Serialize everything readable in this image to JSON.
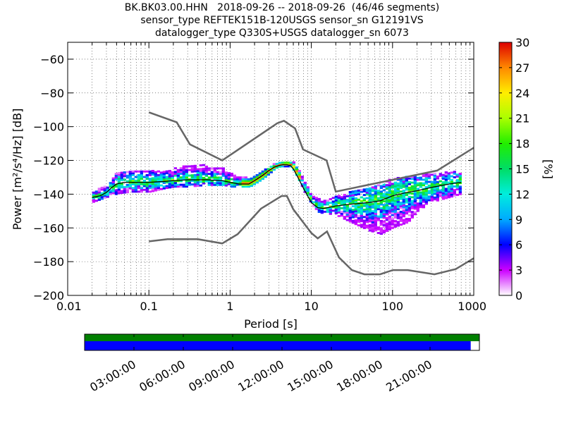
{
  "title": {
    "line1": "BK.BK03.00.HHN   2018-09-26 -- 2018-09-26  (46/46 segments)",
    "line2": "sensor_type REFTEK151B-120USGS sensor_sn G12191VS",
    "line3": "datalogger_type Q330S+USGS datalogger_sn 6073"
  },
  "chart_data": {
    "type": "heatmap",
    "xlabel": "Period [s]",
    "ylabel": "Power [m²/s⁴/Hz] [dB]",
    "xscale": "log",
    "xlim": [
      0.01,
      1000
    ],
    "ylim": [
      -200,
      -50
    ],
    "x_ticks": [
      {
        "value": 0.01,
        "label": "0.01"
      },
      {
        "value": 0.1,
        "label": "0.1"
      },
      {
        "value": 1,
        "label": "1"
      },
      {
        "value": 10,
        "label": "10"
      },
      {
        "value": 100,
        "label": "100"
      },
      {
        "value": 1000,
        "label": "1000"
      }
    ],
    "y_ticks": [
      {
        "value": -60,
        "label": "−60"
      },
      {
        "value": -80,
        "label": "−80"
      },
      {
        "value": -100,
        "label": "−100"
      },
      {
        "value": -120,
        "label": "−120"
      },
      {
        "value": -140,
        "label": "−140"
      },
      {
        "value": -160,
        "label": "−160"
      },
      {
        "value": -180,
        "label": "−180"
      },
      {
        "value": -200,
        "label": "−200"
      }
    ],
    "grid": true,
    "colorbar": {
      "label": "[%]",
      "range": [
        0,
        30
      ],
      "ticks": [
        {
          "value": 0,
          "label": "0"
        },
        {
          "value": 3,
          "label": "3"
        },
        {
          "value": 6,
          "label": "6"
        },
        {
          "value": 9,
          "label": "9"
        },
        {
          "value": 12,
          "label": "12"
        },
        {
          "value": 15,
          "label": "15"
        },
        {
          "value": 18,
          "label": "18"
        },
        {
          "value": 21,
          "label": "21"
        },
        {
          "value": 24,
          "label": "24"
        },
        {
          "value": 27,
          "label": "27"
        },
        {
          "value": 30,
          "label": "30"
        }
      ]
    },
    "noise_models": {
      "high": {
        "x": [
          0.1,
          0.22,
          0.32,
          0.8,
          3.8,
          4.6,
          6.3,
          7.9,
          15.4,
          20,
          354.8,
          1000
        ],
        "y": [
          -91.5,
          -97.4,
          -110.5,
          -120,
          -98,
          -96.5,
          -101,
          -113.5,
          -120,
          -138.5,
          -126,
          -112.5
        ]
      },
      "low": {
        "x": [
          0.1,
          0.17,
          0.4,
          0.8,
          1.24,
          2.4,
          4.3,
          5,
          6,
          10,
          12,
          15.6,
          21.9,
          31.6,
          45,
          70,
          101,
          154,
          328,
          600,
          1000
        ],
        "y": [
          -168,
          -166.7,
          -166.7,
          -169.2,
          -163.7,
          -148.6,
          -141.1,
          -141.1,
          -149,
          -163,
          -166.2,
          -162.1,
          -177.5,
          -185,
          -187.5,
          -187.5,
          -185,
          -185,
          -187.5,
          -184.4,
          -178
        ]
      }
    },
    "mean_psd": {
      "x": [
        0.02,
        0.025,
        0.03,
        0.035,
        0.04,
        0.05,
        0.07,
        0.1,
        0.15,
        0.2,
        0.3,
        0.5,
        0.8,
        1,
        1.3,
        1.7,
        2,
        2.5,
        3,
        3.5,
        4,
        4.5,
        5,
        5.5,
        6,
        7,
        8,
        9,
        10,
        12,
        14,
        16,
        20,
        30,
        50,
        70,
        100,
        150,
        200,
        300,
        500,
        700
      ],
      "y": [
        -142,
        -141,
        -139,
        -136,
        -134,
        -133,
        -133,
        -133,
        -132.5,
        -132,
        -131.5,
        -131.5,
        -132,
        -133,
        -134,
        -134,
        -132,
        -129,
        -126,
        -124,
        -123,
        -122.5,
        -122.5,
        -123,
        -125,
        -131,
        -136.5,
        -141,
        -145,
        -148,
        -148.5,
        -148,
        -147,
        -146,
        -145,
        -144,
        -141,
        -139,
        -138,
        -136,
        -134,
        -133
      ]
    },
    "psd_density": {
      "note": "histogram percent bands (approximate)",
      "bands": [
        {
          "x": [
            0.02,
            0.03,
            0.04,
            0.06,
            0.1,
            0.15,
            0.2,
            0.3,
            0.5,
            0.8,
            1,
            1.3,
            1.7,
            2,
            2.5,
            3,
            3.5,
            4,
            4.5,
            5,
            5.5,
            6,
            7,
            8,
            9,
            10,
            12,
            14,
            16,
            20,
            30,
            50,
            70,
            100,
            150,
            200,
            300,
            500,
            700
          ],
          "y_lo": [
            -145,
            -142,
            -140,
            -139,
            -139,
            -137,
            -136,
            -136,
            -135,
            -135,
            -136,
            -136,
            -136,
            -134,
            -131,
            -128,
            -125,
            -124,
            -124,
            -124,
            -124,
            -127,
            -133,
            -139,
            -143,
            -147,
            -151,
            -152,
            -152,
            -153,
            -157,
            -162,
            -164,
            -160,
            -157,
            -150,
            -145,
            -142,
            -140
          ],
          "y_hi": [
            -139,
            -134,
            -127,
            -126,
            -126,
            -127,
            -125,
            -123,
            -123,
            -125,
            -128,
            -130,
            -131,
            -129,
            -126,
            -124,
            -122,
            -121,
            -121,
            -121,
            -121,
            -122,
            -127,
            -133,
            -137,
            -141,
            -143,
            -144,
            -143,
            -141,
            -139,
            -136,
            -134,
            -131,
            -130,
            -129,
            -128,
            -127,
            -127
          ]
        }
      ]
    }
  },
  "timeline": {
    "labels": [
      "03:00:00",
      "06:00:00",
      "09:00:00",
      "12:00:00",
      "15:00:00",
      "18:00:00",
      "21:00:00"
    ],
    "hours": [
      3,
      6,
      9,
      12,
      15,
      18,
      21
    ],
    "data_coverage_fraction": 1.0,
    "psd_coverage_fraction": 0.978,
    "colors": {
      "data": "#008000",
      "psd": "#0000ff"
    }
  }
}
